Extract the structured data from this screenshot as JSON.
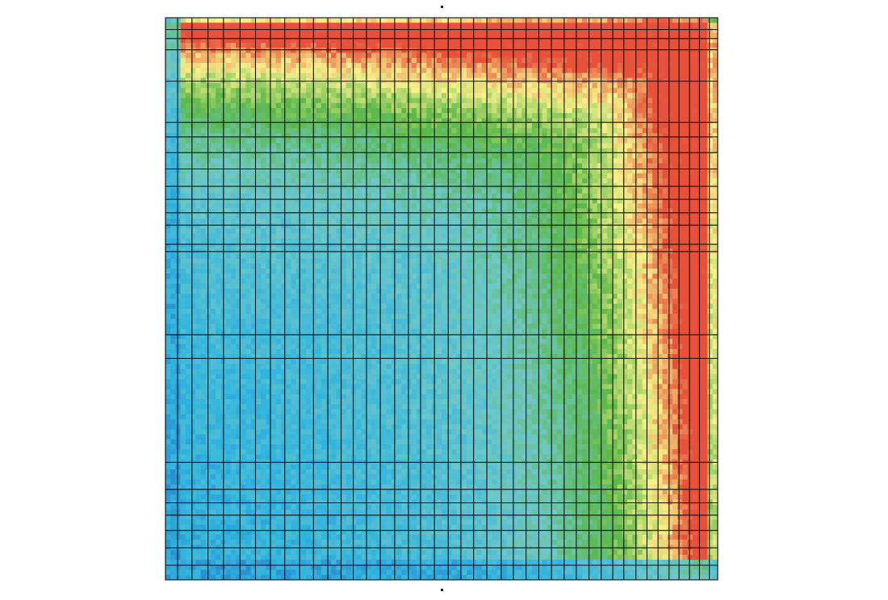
{
  "chart_data": {
    "type": "heatmap",
    "title": "",
    "xlabel": "",
    "ylabel": "",
    "grid": true,
    "colormap": {
      "stops": [
        "#1f5fbf",
        "#2fb4e0",
        "#6fc8c8",
        "#5cb84a",
        "#f7f28a",
        "#e8503a"
      ],
      "value_range": [
        0,
        1
      ]
    },
    "column_boundaries": [
      0.0,
      0.022,
      0.048,
      0.077,
      0.105,
      0.135,
      0.163,
      0.19,
      0.216,
      0.243,
      0.268,
      0.294,
      0.318,
      0.34,
      0.364,
      0.389,
      0.415,
      0.44,
      0.462,
      0.487,
      0.512,
      0.535,
      0.558,
      0.582,
      0.608,
      0.63,
      0.653,
      0.676,
      0.699,
      0.722,
      0.744,
      0.767,
      0.789,
      0.81,
      0.83,
      0.852,
      0.872,
      0.892,
      0.912,
      0.93,
      0.949,
      0.967,
      0.985,
      1.0
    ],
    "row_boundaries": [
      0.0,
      0.021,
      0.037,
      0.057,
      0.113,
      0.186,
      0.212,
      0.24,
      0.269,
      0.3,
      0.323,
      0.347,
      0.369,
      0.403,
      0.416,
      0.564,
      0.606,
      0.791,
      0.839,
      0.863,
      0.885,
      0.912,
      0.943,
      0.974,
      1.0
    ]
  }
}
